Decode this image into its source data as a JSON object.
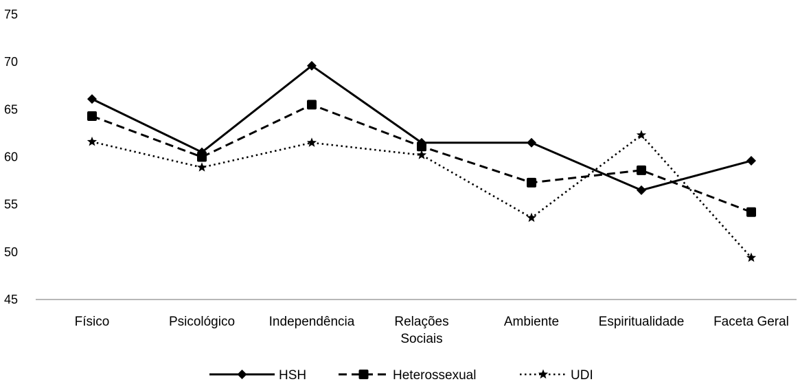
{
  "chart_data": {
    "type": "line",
    "title": "",
    "xlabel": "",
    "ylabel": "",
    "ylim": [
      45,
      75
    ],
    "yticks": [
      45,
      50,
      55,
      60,
      65,
      70,
      75
    ],
    "grid": false,
    "legend_position": "bottom",
    "categories": [
      [
        "Físico"
      ],
      [
        "Psicológico"
      ],
      [
        "Independência"
      ],
      [
        "Relações",
        "Sociais"
      ],
      [
        "Ambiente"
      ],
      [
        "Espiritualidade"
      ],
      [
        "Faceta Geral"
      ]
    ],
    "series": [
      {
        "name": "HSH",
        "dash": "solid",
        "marker": "diamond",
        "color": "#000000",
        "values": [
          66.1,
          60.5,
          69.6,
          61.5,
          61.5,
          56.5,
          59.6
        ]
      },
      {
        "name": "Heterossexual",
        "dash": "dashed",
        "marker": "square",
        "color": "#000000",
        "values": [
          64.3,
          60.0,
          65.5,
          61.1,
          57.3,
          58.6,
          54.2
        ]
      },
      {
        "name": "UDI",
        "dash": "dotted",
        "marker": "star",
        "color": "#000000",
        "values": [
          61.6,
          58.9,
          61.5,
          60.2,
          53.6,
          62.3,
          49.4
        ]
      }
    ]
  }
}
